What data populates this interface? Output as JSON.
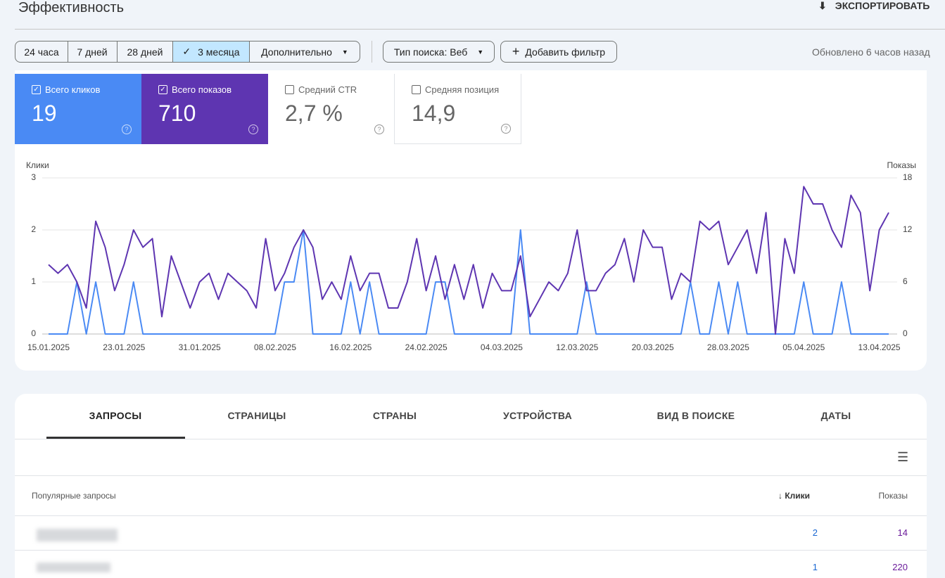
{
  "header": {
    "title": "Эффективность",
    "export": "ЭКСПОРТИРОВАТЬ"
  },
  "filters": {
    "ranges": [
      "24 часа",
      "7 дней",
      "28 дней",
      "3 месяца",
      "Дополнительно"
    ],
    "search_type": "Тип поиска: Веб",
    "add_filter": "Добавить фильтр",
    "updated": "Обновлено 6 часов назад"
  },
  "metrics": [
    {
      "label": "Всего кликов",
      "value": 19
    },
    {
      "label": "Всего показов",
      "value": 710
    },
    {
      "label": "Средний CTR",
      "value": "2,7 %"
    },
    {
      "label": "Средняя позиция",
      "value": "14,9"
    }
  ],
  "chart_data": {
    "type": "line",
    "categories": [
      "15.01.2025",
      null,
      null,
      null,
      null,
      null,
      null,
      null,
      "23.01.2025",
      null,
      null,
      null,
      null,
      null,
      null,
      null,
      "31.01.2025",
      null,
      null,
      null,
      null,
      null,
      null,
      null,
      "08.02.2025",
      null,
      null,
      null,
      null,
      null,
      null,
      null,
      "16.02.2025",
      null,
      null,
      null,
      null,
      null,
      null,
      null,
      "24.02.2025",
      null,
      null,
      null,
      null,
      null,
      null,
      null,
      "04.03.2025",
      null,
      null,
      null,
      null,
      null,
      null,
      null,
      "12.03.2025",
      null,
      null,
      null,
      null,
      null,
      null,
      null,
      "20.03.2025",
      null,
      null,
      null,
      null,
      null,
      null,
      null,
      "28.03.2025",
      null,
      null,
      null,
      null,
      null,
      null,
      null,
      "05.04.2025",
      null,
      null,
      null,
      null,
      null,
      null,
      null,
      "13.04.2025",
      null
    ],
    "series": [
      {
        "name": "Клики",
        "color": "#4a8af4",
        "values": [
          0,
          0,
          0,
          1,
          0,
          1,
          0,
          0,
          0,
          1,
          0,
          0,
          0,
          0,
          0,
          0,
          0,
          0,
          0,
          0,
          0,
          0,
          0,
          0,
          0,
          1,
          1,
          2,
          0,
          0,
          0,
          0,
          1,
          0,
          1,
          0,
          0,
          0,
          0,
          0,
          0,
          1,
          1,
          0,
          0,
          0,
          0,
          0,
          0,
          0,
          2,
          0,
          0,
          0,
          0,
          0,
          0,
          1,
          0,
          0,
          0,
          0,
          0,
          0,
          0,
          0,
          0,
          0,
          1,
          0,
          0,
          1,
          0,
          1,
          0,
          0,
          0,
          0,
          0,
          0,
          1,
          0,
          0,
          0,
          1,
          0,
          0,
          0,
          0,
          0
        ]
      },
      {
        "name": "Показы",
        "color": "#5e35b1",
        "axis": "y2",
        "values": [
          8,
          7,
          8,
          6,
          3,
          13,
          10,
          5,
          8,
          12,
          10,
          11,
          2,
          9,
          6,
          3,
          6,
          7,
          4,
          7,
          6,
          5,
          3,
          11,
          5,
          7,
          10,
          12,
          10,
          4,
          6,
          4,
          9,
          5,
          7,
          7,
          3,
          3,
          6,
          11,
          5,
          9,
          4,
          8,
          4,
          8,
          3,
          7,
          5,
          5,
          9,
          2,
          4,
          6,
          5,
          7,
          12,
          5,
          5,
          7,
          8,
          11,
          6,
          12,
          10,
          10,
          4,
          7,
          6,
          13,
          12,
          13,
          8,
          10,
          12,
          7,
          14,
          0,
          11,
          7,
          17,
          15,
          15,
          12,
          10,
          16,
          14,
          5,
          12,
          14
        ]
      }
    ],
    "ylim": [
      0,
      3
    ],
    "yticks": [
      0,
      1,
      2,
      3
    ],
    "y2lim": [
      0,
      18
    ],
    "y2ticks": [
      0,
      6,
      12,
      18
    ],
    "grid": true
  },
  "tabs": [
    "ЗАПРОСЫ",
    "СТРАНИЦЫ",
    "СТРАНЫ",
    "УСТРОЙСТВА",
    "ВИД В ПОИСКЕ",
    "ДАТЫ"
  ],
  "table": {
    "headers": [
      "Популярные запросы",
      "Клики",
      "Показы"
    ],
    "rows": [
      [
        2,
        14
      ],
      [
        1,
        220
      ]
    ]
  }
}
